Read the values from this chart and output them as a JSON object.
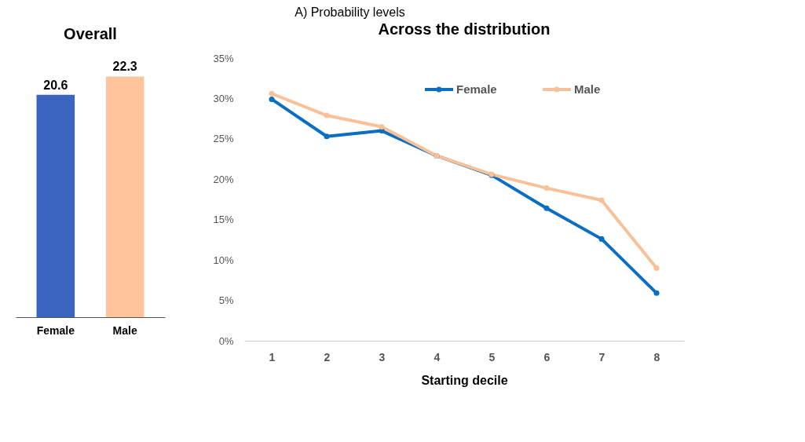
{
  "chart_data": [
    {
      "type": "bar",
      "title": "Overall",
      "annotations": [
        "A)    Probability levels"
      ],
      "categories": [
        "Female",
        "Male"
      ],
      "values": [
        20.6,
        22.3
      ],
      "colors": [
        "#3a66bf",
        "#ffc49b"
      ],
      "data_labels": true,
      "tick_labels": "x"
    },
    {
      "type": "line",
      "title": "Across the distribution",
      "xlabel": "Starting decile",
      "categories": [
        "1",
        "2",
        "3",
        "4",
        "5",
        "6",
        "7",
        "8"
      ],
      "series": [
        {
          "name": "Female",
          "color": "#0a6fc2",
          "values": [
            29.9,
            25.3,
            26.0,
            22.9,
            20.5,
            16.4,
            12.6,
            5.9
          ]
        },
        {
          "name": "Male",
          "color": "#f9c197",
          "values": [
            30.6,
            27.9,
            26.5,
            22.9,
            20.6,
            18.9,
            17.4,
            9.0
          ]
        }
      ],
      "ylim": [
        0,
        35
      ],
      "yticks": [
        {
          "value": 0,
          "label": "0%"
        },
        {
          "value": 5,
          "label": "5%"
        },
        {
          "value": 10,
          "label": "10%"
        },
        {
          "value": 15,
          "label": "15%"
        },
        {
          "value": 20,
          "label": "20%"
        },
        {
          "value": 25,
          "label": "25%"
        },
        {
          "value": 30,
          "label": "30%"
        },
        {
          "value": 35,
          "label": "35%"
        }
      ],
      "grid": false,
      "legend": "top right",
      "marker": "circle",
      "line_style": "solid"
    }
  ]
}
